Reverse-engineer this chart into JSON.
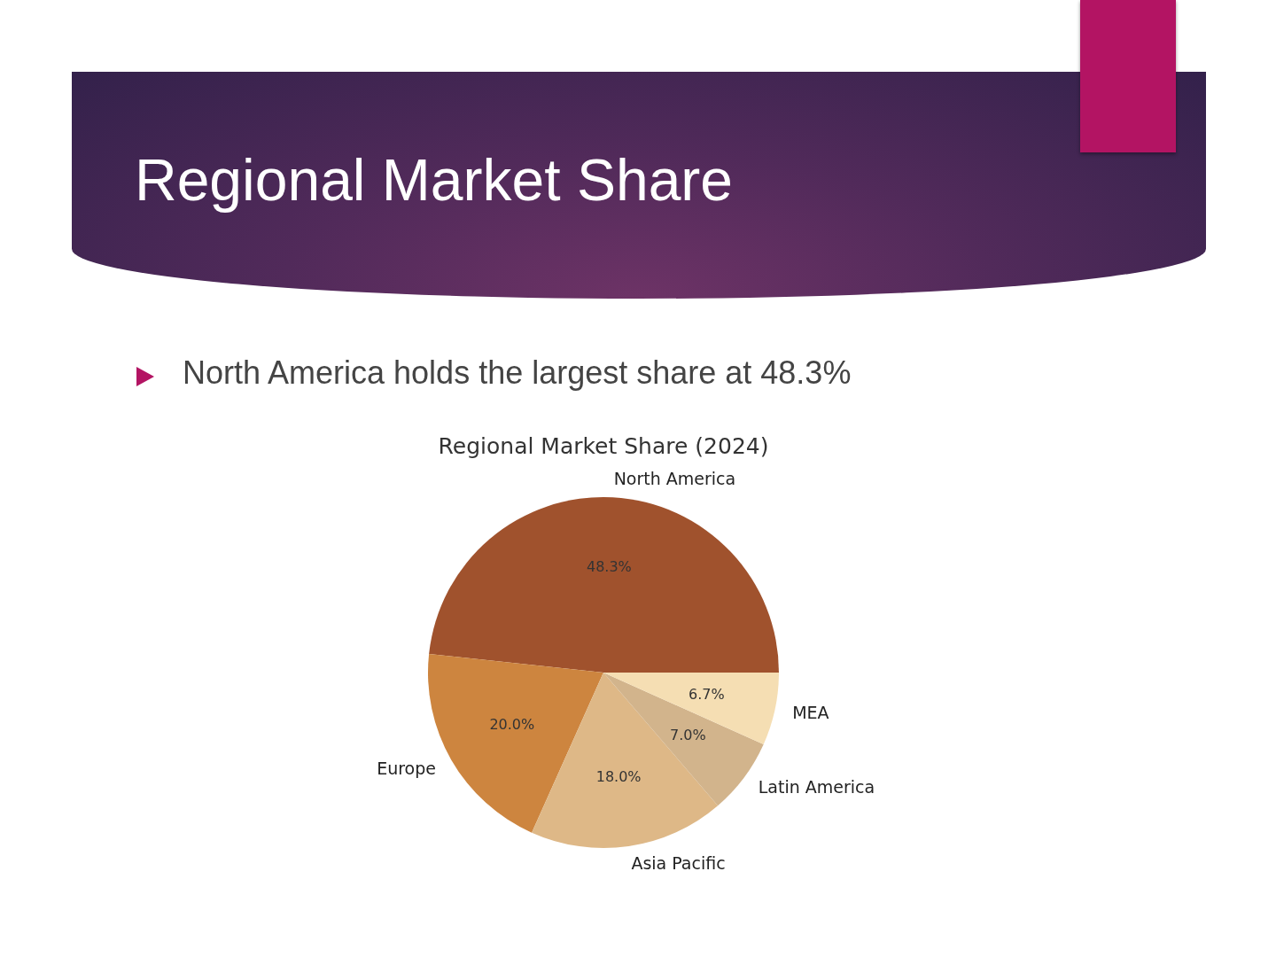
{
  "chart_data": {
    "type": "pie",
    "title": "Regional Market Share",
    "subtitle": "Regional Market Share (2024)",
    "annotations": [
      "North America holds the largest share at 48.3%"
    ],
    "categories": [
      "North America",
      "Europe",
      "Asia Pacific",
      "Latin America",
      "MEA"
    ],
    "values": [
      48.3,
      20.0,
      18.0,
      7.0,
      6.7
    ],
    "colors": [
      "#a0522d",
      "#cd853f",
      "#deb887",
      "#d2b48c",
      "#f5deb3"
    ],
    "value_labels": [
      "48.3%",
      "20.0%",
      "18.0%",
      "7.0%",
      "6.7%"
    ]
  }
}
